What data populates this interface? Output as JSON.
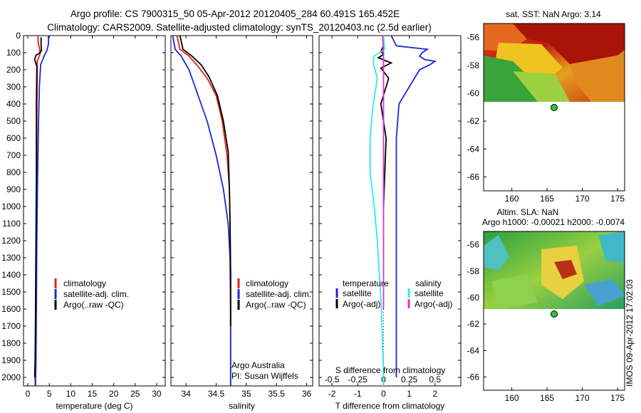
{
  "title": {
    "line1": "Argo profile: CS 7900315_50 05-Apr-2012 20120405_284 60.491S 165.452E",
    "line2": "Climatology: CARS2009. Satellite-adjusted climatology: synTS_20120403.nc (2.5d earlier)"
  },
  "colors": {
    "climatology": "#e0201a",
    "satellite": "#1a28d8",
    "argo": "#000000",
    "sat_salinity": "#2ee8f0",
    "argo_salinity": "#e030d0"
  },
  "labels": {
    "legend_climatology": "climatology",
    "legend_satellite_adj": "satellite-adj. clim.",
    "legend_argo_raw": "Argo(..raw -QC)",
    "legend_temperature": "temperature",
    "legend_salinity": "salinity",
    "legend_satellite": "satellite",
    "legend_argo_adj": "Argo(-adj)",
    "argo_australia": "Argo Australia",
    "pi": "PI: Susan Wijffels",
    "s_diff": "S difference from climatology",
    "sst_title": "sat. SST: NaN Argo: 3.14",
    "sla_title1": "Altim. SLA: NaN",
    "sla_title2": "Argo h1000: -0.00021 h2000: -0.0074",
    "stamp": "IMOS 09-Apr-2012 17:02:03"
  },
  "chart_data": [
    {
      "type": "line",
      "name": "temperature",
      "xlabel": "temperature (deg C)",
      "ylabel": "",
      "xlim": [
        -1,
        32
      ],
      "ylim": [
        2050,
        0
      ],
      "xticks": [
        0,
        5,
        10,
        15,
        20,
        25,
        30
      ],
      "yticks": [
        0,
        100,
        200,
        300,
        400,
        500,
        600,
        700,
        800,
        900,
        1000,
        1100,
        1200,
        1300,
        1400,
        1500,
        1600,
        1700,
        1800,
        1900,
        2000
      ],
      "series": [
        {
          "name": "climatology",
          "color": "#e0201a",
          "x": [
            2.4,
            2.4,
            2.8,
            2.8,
            2.2,
            2.2,
            2.1,
            2.1,
            2.0,
            1.9,
            1.9,
            1.8,
            1.7,
            1.7
          ],
          "y": [
            0,
            40,
            85,
            110,
            150,
            250,
            500,
            800,
            1100,
            1400,
            1600,
            1800,
            2000,
            2050
          ]
        },
        {
          "name": "satellite-adj. clim.",
          "color": "#1a28d8",
          "x": [
            4.8,
            4.8,
            4.4,
            3.8,
            3.0,
            2.7,
            2.5,
            2.3,
            2.1,
            2.0,
            1.9,
            1.8
          ],
          "y": [
            0,
            50,
            90,
            120,
            170,
            300,
            500,
            800,
            1200,
            1600,
            1900,
            2050
          ]
        },
        {
          "name": "Argo(..raw -QC)",
          "color": "#000000",
          "x": [
            3.1,
            3.1,
            3.2,
            2.9,
            1.9,
            1.6,
            2.1,
            2.0,
            2.0,
            1.9,
            1.8,
            1.7,
            1.6
          ],
          "y": [
            10,
            60,
            85,
            100,
            115,
            140,
            180,
            400,
            800,
            1200,
            1600,
            1900,
            2000
          ]
        }
      ]
    },
    {
      "type": "line",
      "name": "salinity",
      "xlabel": "salinity",
      "ylabel": "",
      "xlim": [
        33.75,
        36.1
      ],
      "ylim": [
        2050,
        0
      ],
      "xticks": [
        34,
        34.5,
        35,
        35.5,
        36
      ],
      "series": [
        {
          "name": "climatology",
          "color": "#e0201a",
          "x": [
            33.85,
            33.9,
            34.05,
            34.2,
            34.35,
            34.5,
            34.6,
            34.68,
            34.72,
            34.73,
            34.74,
            34.74,
            34.74
          ],
          "y": [
            0,
            80,
            120,
            180,
            250,
            350,
            500,
            700,
            900,
            1100,
            1400,
            1800,
            2050
          ]
        },
        {
          "name": "satellite-adj. clim.",
          "color": "#1a28d8",
          "x": [
            33.78,
            33.82,
            33.92,
            34.05,
            34.2,
            34.35,
            34.5,
            34.62,
            34.7,
            34.73,
            34.74,
            34.74
          ],
          "y": [
            0,
            80,
            120,
            200,
            350,
            500,
            700,
            900,
            1100,
            1300,
            1600,
            2050
          ]
        },
        {
          "name": "Argo(..raw -QC)",
          "color": "#000000",
          "x": [
            33.9,
            33.95,
            34.1,
            34.25,
            34.38,
            34.52,
            34.62,
            34.7,
            34.72,
            34.73,
            34.74,
            34.74
          ],
          "y": [
            0,
            80,
            120,
            170,
            240,
            350,
            500,
            680,
            900,
            1100,
            1400,
            1700
          ]
        }
      ],
      "annotations": [
        "Argo Australia",
        "PI: Susan Wijffels"
      ]
    },
    {
      "type": "line",
      "name": "difference",
      "xlabel": "T difference from climatology",
      "x2label": "S difference from climatology",
      "xlim": [
        -2.5,
        3
      ],
      "x2lim": [
        -0.625,
        0.75
      ],
      "ylim": [
        2050,
        0
      ],
      "xticks": [
        -2,
        -1,
        0,
        1,
        2
      ],
      "x2ticks": [
        -0.5,
        -0.25,
        0,
        0.25,
        0.5
      ],
      "series": [
        {
          "name": "temperature satellite",
          "color": "#1a28d8",
          "axis": "T",
          "x": [
            0.3,
            0.5,
            1.7,
            1.5,
            1.4,
            1.6,
            2.0,
            1.8,
            1.4,
            1.0,
            0.6,
            0.5,
            0.5,
            0.5,
            0.5
          ],
          "y": [
            0,
            60,
            80,
            100,
            120,
            140,
            150,
            170,
            200,
            300,
            400,
            600,
            1000,
            1500,
            2000
          ]
        },
        {
          "name": "temperature Argo(-adj)",
          "color": "#000000",
          "axis": "T",
          "x": [
            0.0,
            -0.1,
            0.0,
            -0.2,
            0.3,
            -0.1,
            0.2,
            -0.1,
            0.1,
            0.0
          ],
          "y": [
            60,
            90,
            110,
            130,
            160,
            190,
            250,
            400,
            600,
            1000
          ]
        },
        {
          "name": "salinity satellite",
          "color": "#2ee8f0",
          "axis": "S",
          "x": [
            0.0,
            0.01,
            -0.09,
            -0.1,
            -0.06,
            -0.1,
            -0.13,
            -0.13,
            -0.09,
            -0.06,
            -0.04,
            -0.02,
            -0.01,
            0.0,
            0.0
          ],
          "y": [
            0,
            80,
            120,
            160,
            250,
            400,
            600,
            800,
            1000,
            1200,
            1400,
            1600,
            1800,
            1950,
            2050
          ]
        },
        {
          "name": "salinity Argo(-adj)",
          "color": "#e030d0",
          "axis": "S",
          "x": [
            -0.01,
            0.0,
            0.0,
            0.0,
            0.0,
            0.0,
            0.0
          ],
          "y": [
            0,
            100,
            200,
            400,
            700,
            1100,
            1600
          ]
        }
      ]
    },
    {
      "type": "heatmap",
      "name": "sst map",
      "title": "sat. SST: NaN Argo: 3.14",
      "xlim": [
        156,
        176
      ],
      "ylim": [
        -67,
        -55
      ],
      "xticks": [
        160,
        165,
        170,
        175
      ],
      "yticks": [
        -56,
        -58,
        -60,
        -62,
        -64,
        -66
      ],
      "data_extent_lat": [
        -55,
        -60
      ],
      "marker": {
        "lon": 165.452,
        "lat": -60.491
      }
    },
    {
      "type": "heatmap",
      "name": "sla map",
      "title": "Altim. SLA: NaN",
      "xlim": [
        156,
        176
      ],
      "ylim": [
        -67,
        -55
      ],
      "xticks": [
        160,
        165,
        170,
        175
      ],
      "yticks": [
        -56,
        -58,
        -60,
        -62,
        -64,
        -66
      ],
      "data_extent_lat": [
        -55,
        -60
      ],
      "marker": {
        "lon": 165.452,
        "lat": -60.491
      }
    }
  ]
}
